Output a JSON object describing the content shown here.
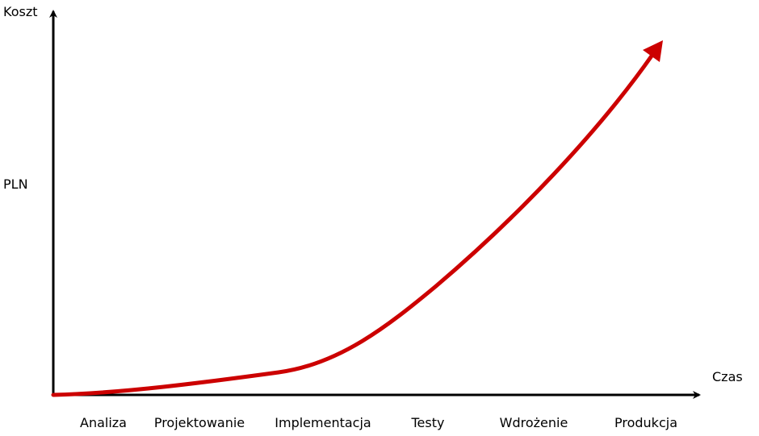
{
  "chart_data": {
    "type": "line",
    "y_axis_label": "Koszt",
    "y_unit_label": "PLN",
    "x_axis_label": "Czas",
    "stages": [
      "Analiza",
      "Projektowanie",
      "Implementacja",
      "Testy",
      "Wdrożenie",
      "Produkcja"
    ],
    "curve_color": "#cc0000",
    "axis_color": "#000000",
    "grid": false
  }
}
